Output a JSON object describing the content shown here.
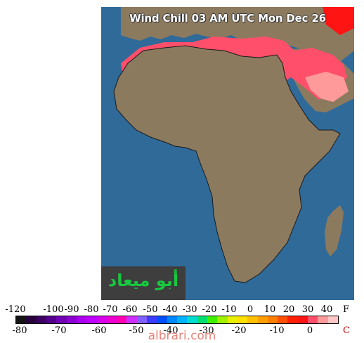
{
  "title": "Wind Chill 03 AM UTC Mon Dec 26",
  "logo_text": "أبو ميعاد",
  "watermark": "albrari.com",
  "colors": {
    "ocean": "#2f6a99",
    "land": "#8c7a5f",
    "border": "#1a1a1a",
    "chill_light": "#ff9a9a",
    "chill_mid": "#ff4f6a",
    "chill_high": "#ff1414"
  },
  "scale": {
    "f_unit": "F",
    "c_unit": "C",
    "f_ticks": [
      "-120",
      "-100",
      "-90",
      "-80",
      "-70",
      "-60",
      "-50",
      "-40",
      "-30",
      "-20",
      "-10",
      "0",
      "10",
      "20",
      "30",
      "40"
    ],
    "c_ticks": [
      "-80",
      "-70",
      "-60",
      "-50",
      "-40",
      "-30",
      "-20",
      "-10",
      "0"
    ],
    "colors": [
      "#141414",
      "#28003c",
      "#3c0064",
      "#55008c",
      "#7000b4",
      "#8c00d2",
      "#aa00ee",
      "#c000ff",
      "#d800e8",
      "#ee00d0",
      "#ff00b4",
      "#cc30ff",
      "#8060ff",
      "#3c3cff",
      "#0050ff",
      "#0088ff",
      "#00b4ff",
      "#00dcd0",
      "#00e070",
      "#40ee00",
      "#a0f000",
      "#e8f000",
      "#ffe000",
      "#ffc000",
      "#ffa000",
      "#ff8000",
      "#ff5000",
      "#ff2000",
      "#ff1414",
      "#ff4f6a",
      "#ff9a9a",
      "#ffc8c8"
    ]
  }
}
